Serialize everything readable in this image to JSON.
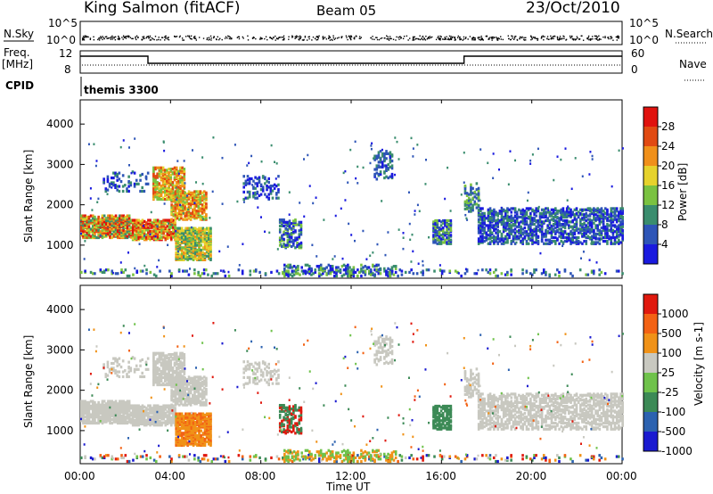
{
  "header": {
    "station_title": "King Salmon (fitACF)",
    "beam_label": "Beam 05",
    "date_label": "23/Oct/2010"
  },
  "side_labels": {
    "nsky": "N.Sky",
    "freq": "Freq.",
    "freq_unit": "[MHz]",
    "cpid": "CPID",
    "nsearch": "N.Search",
    "nave": "Nave"
  },
  "cpid_text": "themis 3300",
  "time_axis_label": "Time UT",
  "colors": {
    "power": [
      "#1a1adf",
      "#2e55b7",
      "#3a8d6e",
      "#7ac241",
      "#e6d22c",
      "#f0901a",
      "#e14a12",
      "#e0120e"
    ],
    "velocity": [
      "#1a1ad0",
      "#2c62b0",
      "#3c8a56",
      "#6fc24b",
      "#c8c8c0",
      "#f09218",
      "#f36214",
      "#e0190e"
    ],
    "ground_scatter": "#c8c8c0",
    "frame": "#000000"
  },
  "chart_data": [
    {
      "type": "line",
      "name": "noise-panel",
      "left_ticks": [
        "10^5",
        "10^0"
      ],
      "right_ticks": [
        "10^5",
        "10^0"
      ],
      "xlim": [
        0,
        24
      ]
    },
    {
      "type": "line",
      "name": "frequency-panel",
      "left_ticks": [
        "12",
        "8"
      ],
      "right_ticks": [
        "60",
        "0"
      ],
      "xlim": [
        0,
        24
      ],
      "freq_steps": [
        {
          "t0": 0,
          "t1": 3,
          "value": 12
        },
        {
          "t0": 3,
          "t1": 17,
          "value": 10
        },
        {
          "t0": 17,
          "t1": 24,
          "value": 12
        }
      ]
    },
    {
      "type": "heatmap",
      "name": "power-panel",
      "ylabel": "Slant Range [km]",
      "yticks": [
        "1000",
        "2000",
        "3000",
        "4000"
      ],
      "ylim": [
        180,
        4600
      ],
      "xlim": [
        0,
        24
      ],
      "colorbar_label": "Power [dB]",
      "colorbar_ticks": [
        "4",
        "8",
        "12",
        "16",
        "20",
        "24",
        "28"
      ]
    },
    {
      "type": "heatmap",
      "name": "velocity-panel",
      "ylabel": "Slant Range [km]",
      "yticks": [
        "1000",
        "2000",
        "3000",
        "4000"
      ],
      "ylim": [
        180,
        4600
      ],
      "xlim": [
        0,
        24
      ],
      "colorbar_label": "Velocity [m s-1]",
      "colorbar_ticks": [
        "1000",
        "500",
        "100",
        "25",
        "-25",
        "-100",
        "-500",
        "-1000"
      ]
    }
  ],
  "x_axis_ticks": [
    "00:00",
    "04:00",
    "08:00",
    "12:00",
    "16:00",
    "20:00",
    "00:00"
  ]
}
